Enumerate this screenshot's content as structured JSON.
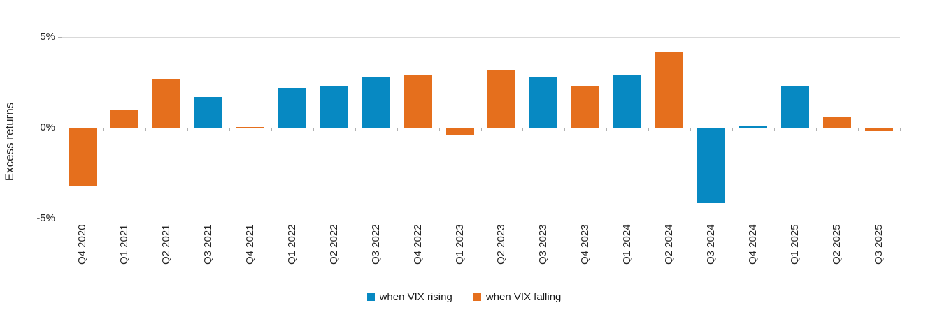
{
  "chart": {
    "y_axis_title": "Excess returns",
    "y_ticks": [
      "5%",
      "0%",
      "-5%"
    ]
  },
  "chart_data": {
    "type": "bar",
    "title": "",
    "xlabel": "",
    "ylabel": "Excess returns",
    "ylim": [
      -5,
      5
    ],
    "y_tick_labels": [
      "5%",
      "0%",
      "-5%"
    ],
    "y_unit": "percent",
    "grid": "horizontal lines at 5%, 0%, -5% only",
    "legend_position": "bottom-center",
    "categories": [
      "Q4 2020",
      "Q1 2021",
      "Q2 2021",
      "Q3 2021",
      "Q4 2021",
      "Q1 2022",
      "Q2 2022",
      "Q3 2022",
      "Q4 2022",
      "Q1 2023",
      "Q2 2023",
      "Q3 2023",
      "Q4 2023",
      "Q1 2024",
      "Q2 2024",
      "Q3 2024",
      "Q4 2024",
      "Q1 2025",
      "Q2 2025",
      "Q3 2025"
    ],
    "series": [
      {
        "name": "when VIX rising",
        "color": "#0789c2",
        "values": [
          null,
          null,
          null,
          1.7,
          null,
          2.2,
          2.3,
          2.8,
          null,
          null,
          null,
          2.8,
          null,
          2.9,
          null,
          -4.1,
          0.1,
          2.3,
          null,
          null
        ]
      },
      {
        "name": "when VIX falling",
        "color": "#e56f1d",
        "values": [
          -3.2,
          1.0,
          2.7,
          null,
          0.05,
          null,
          null,
          null,
          2.9,
          -0.4,
          3.2,
          null,
          2.3,
          null,
          4.2,
          null,
          null,
          null,
          0.6,
          -0.15
        ]
      }
    ]
  }
}
